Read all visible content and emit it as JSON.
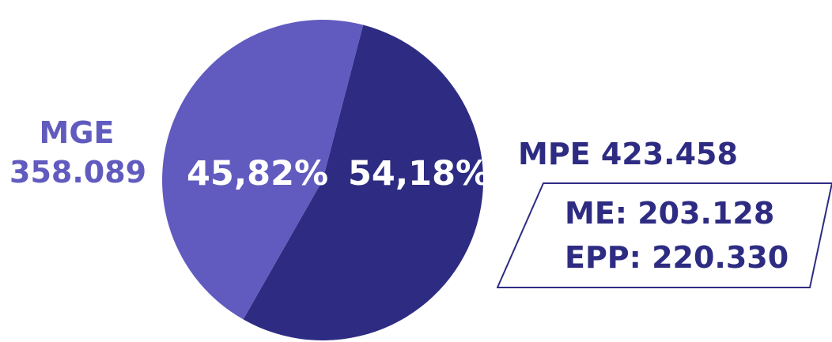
{
  "chart_data": {
    "type": "pie",
    "slices": [
      {
        "label": "MGE",
        "value": 358089,
        "display_value": "358.089",
        "percent": 45.82,
        "percent_label": "45,82%",
        "color": "#615bbf"
      },
      {
        "label": "MPE",
        "value": 423458,
        "display_value": "423.458",
        "percent": 54.18,
        "percent_label": "54,18%",
        "color": "#2e2c82"
      }
    ]
  },
  "labels": {
    "mge_name": "MGE",
    "mge_value": "358.089",
    "mpe_title": "MPE 423.458",
    "me": "ME: 203.128",
    "epp": "EPP: 220.330"
  },
  "colors": {
    "light_slice": "#615bbf",
    "dark_slice": "#2e2c82",
    "text_dark": "#2e2c82",
    "text_light": "#615bbf"
  }
}
